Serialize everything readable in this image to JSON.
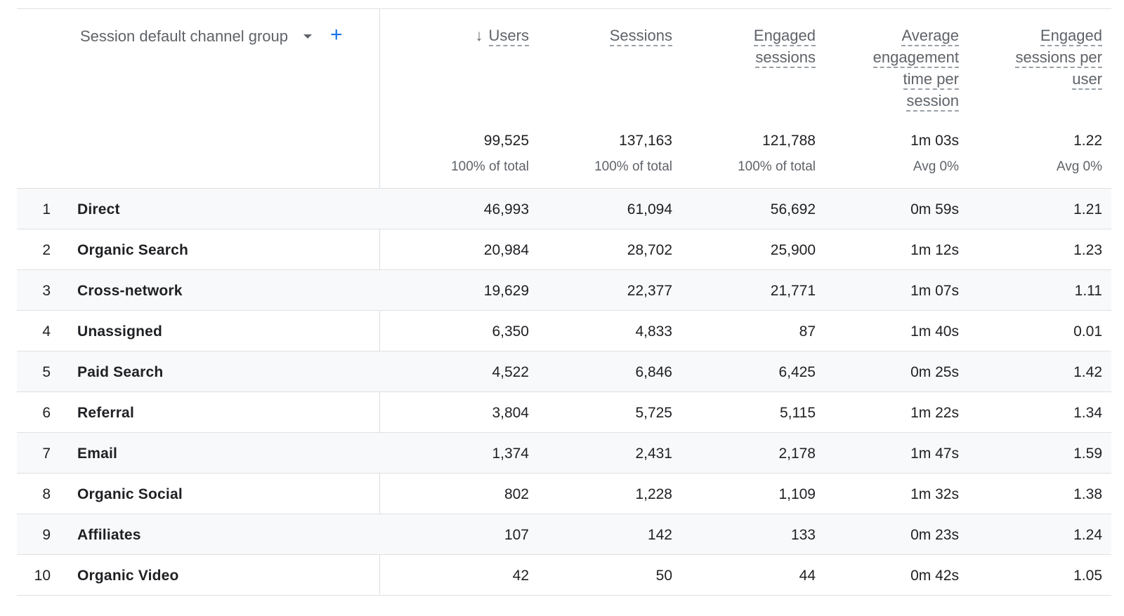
{
  "dimension": {
    "label": "Session default channel group",
    "add_icon": "plus-icon"
  },
  "columns": [
    {
      "key": "users",
      "label": "Users",
      "sorted": true,
      "sort_icon": "arrow-down-icon",
      "total": "99,525",
      "sub": "100% of total"
    },
    {
      "key": "sessions",
      "label": "Sessions",
      "total": "137,163",
      "sub": "100% of total"
    },
    {
      "key": "engaged_sessions",
      "label": "Engaged sessions",
      "total": "121,788",
      "sub": "100% of total"
    },
    {
      "key": "avg_engagement_time",
      "label": "Average engagement time per session",
      "total": "1m 03s",
      "sub": "Avg 0%"
    },
    {
      "key": "engaged_sessions_per_user",
      "label": "Engaged sessions per user",
      "total": "1.22",
      "sub": "Avg 0%"
    }
  ],
  "header_lines": {
    "users": [
      "Users"
    ],
    "sessions": [
      "Sessions"
    ],
    "engaged_sessions": [
      "Engaged",
      "sessions"
    ],
    "avg_engagement_time": [
      "Average",
      "engagement",
      "time per",
      "session"
    ],
    "engaged_sessions_per_user": [
      "Engaged",
      "sessions per",
      "user"
    ]
  },
  "rows": [
    {
      "idx": "1",
      "name": "Direct",
      "values": [
        "46,993",
        "61,094",
        "56,692",
        "0m 59s",
        "1.21"
      ]
    },
    {
      "idx": "2",
      "name": "Organic Search",
      "values": [
        "20,984",
        "28,702",
        "25,900",
        "1m 12s",
        "1.23"
      ]
    },
    {
      "idx": "3",
      "name": "Cross-network",
      "values": [
        "19,629",
        "22,377",
        "21,771",
        "1m 07s",
        "1.11"
      ]
    },
    {
      "idx": "4",
      "name": "Unassigned",
      "values": [
        "6,350",
        "4,833",
        "87",
        "1m 40s",
        "0.01"
      ]
    },
    {
      "idx": "5",
      "name": "Paid Search",
      "values": [
        "4,522",
        "6,846",
        "6,425",
        "0m 25s",
        "1.42"
      ]
    },
    {
      "idx": "6",
      "name": "Referral",
      "values": [
        "3,804",
        "5,725",
        "5,115",
        "1m 22s",
        "1.34"
      ]
    },
    {
      "idx": "7",
      "name": "Email",
      "values": [
        "1,374",
        "2,431",
        "2,178",
        "1m 47s",
        "1.59"
      ]
    },
    {
      "idx": "8",
      "name": "Organic Social",
      "values": [
        "802",
        "1,228",
        "1,109",
        "1m 32s",
        "1.38"
      ]
    },
    {
      "idx": "9",
      "name": "Affiliates",
      "values": [
        "107",
        "142",
        "133",
        "0m 23s",
        "1.24"
      ]
    },
    {
      "idx": "10",
      "name": "Organic Video",
      "values": [
        "42",
        "50",
        "44",
        "0m 42s",
        "1.05"
      ]
    }
  ]
}
